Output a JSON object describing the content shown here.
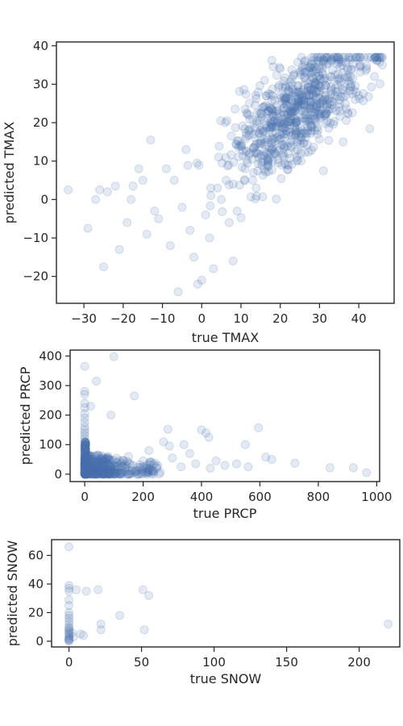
{
  "chart_data": [
    {
      "type": "scatter",
      "title": "",
      "xlabel": "true TMAX",
      "ylabel": "predicted TMAX",
      "xlim": [
        -37,
        49
      ],
      "ylim": [
        -27,
        41
      ],
      "xticks": [
        -30,
        -20,
        -10,
        0,
        10,
        20,
        30,
        40
      ],
      "yticks": [
        -20,
        -10,
        0,
        10,
        20,
        30,
        40
      ],
      "tick_labels_x": [
        "−30",
        "−20",
        "−10",
        "0",
        "10",
        "20",
        "30",
        "40"
      ],
      "tick_labels_y": [
        "−20",
        "−10",
        "0",
        "10",
        "20",
        "30",
        "40"
      ],
      "marker_color": "#4c72b0",
      "marker_alpha": 0.15,
      "grid": false,
      "points": [
        [
          -34,
          2.5
        ],
        [
          -29,
          -7.5
        ],
        [
          -27,
          0
        ],
        [
          -25,
          -17.5
        ],
        [
          -24,
          2
        ],
        [
          -22,
          3.5
        ],
        [
          -21,
          -13
        ],
        [
          -19,
          -6
        ],
        [
          -18,
          0
        ],
        [
          -16,
          8
        ],
        [
          -15,
          5
        ],
        [
          -14,
          -9
        ],
        [
          -13,
          15.5
        ],
        [
          -12,
          -3
        ],
        [
          -11,
          -5
        ],
        [
          -9,
          8
        ],
        [
          -8,
          -12
        ],
        [
          -7,
          5
        ],
        [
          -6,
          -24
        ],
        [
          -5,
          -2
        ],
        [
          -4,
          13
        ],
        [
          -3,
          -8
        ],
        [
          -2,
          -15
        ],
        [
          -1,
          -22
        ],
        [
          0,
          -21
        ],
        [
          1,
          -4
        ],
        [
          2,
          -10
        ],
        [
          3,
          -18
        ],
        [
          4,
          3
        ],
        [
          5,
          0
        ],
        [
          6,
          20
        ],
        [
          7,
          -6
        ],
        [
          8,
          4
        ],
        [
          9,
          -3
        ],
        [
          10,
          14
        ],
        [
          11,
          8
        ],
        [
          12,
          22
        ],
        [
          13,
          5
        ],
        [
          14,
          12
        ],
        [
          15,
          18
        ],
        [
          16,
          31
        ],
        [
          17,
          10
        ],
        [
          18,
          27
        ],
        [
          19,
          16
        ],
        [
          20,
          34
        ],
        [
          21,
          24
        ],
        [
          22,
          12
        ],
        [
          23,
          30
        ],
        [
          24,
          20
        ],
        [
          25,
          33
        ],
        [
          26,
          26
        ],
        [
          27,
          18
        ],
        [
          28,
          35
        ],
        [
          29,
          28
        ],
        [
          30,
          22
        ],
        [
          31,
          31
        ],
        [
          32,
          26
        ],
        [
          33,
          36
        ],
        [
          34,
          29
        ],
        [
          35,
          24
        ],
        [
          36,
          33
        ],
        [
          38,
          30
        ],
        [
          40,
          27
        ],
        [
          42,
          34
        ],
        [
          44,
          32
        ],
        [
          46,
          35
        ],
        [
          31,
          7.5
        ],
        [
          36,
          15
        ],
        [
          -26,
          2.5
        ],
        [
          -17.5,
          3.5
        ],
        [
          8,
          -16
        ]
      ],
      "cluster": {
        "x_mean": 25,
        "x_sd": 9,
        "y_slope": 0.72,
        "y_offset": 6,
        "y_sd": 6.5,
        "n": 700,
        "seed": 11
      }
    },
    {
      "type": "scatter",
      "title": "",
      "xlabel": "true PRCP",
      "ylabel": "predicted PRCP",
      "xlim": [
        -50,
        1010
      ],
      "ylim": [
        -25,
        420
      ],
      "xticks": [
        0,
        200,
        400,
        600,
        800,
        1000
      ],
      "yticks": [
        0,
        100,
        200,
        300,
        400
      ],
      "tick_labels_x": [
        "0",
        "200",
        "400",
        "600",
        "800",
        "1000"
      ],
      "tick_labels_y": [
        "0",
        "100",
        "200",
        "300",
        "400"
      ],
      "marker_color": "#4c72b0",
      "marker_alpha": 0.15,
      "grid": false,
      "points": [
        [
          0,
          365
        ],
        [
          0,
          280
        ],
        [
          0,
          270
        ],
        [
          0,
          240
        ],
        [
          0,
          225
        ],
        [
          0,
          205
        ],
        [
          0,
          190
        ],
        [
          0,
          175
        ],
        [
          0,
          160
        ],
        [
          0,
          150
        ],
        [
          0,
          140
        ],
        [
          0,
          130
        ],
        [
          0,
          120
        ],
        [
          0,
          110
        ],
        [
          0,
          100
        ],
        [
          0,
          95
        ],
        [
          0,
          90
        ],
        [
          0,
          85
        ],
        [
          100,
          398
        ],
        [
          40,
          315
        ],
        [
          20,
          230
        ],
        [
          90,
          200
        ],
        [
          170,
          265
        ],
        [
          285,
          152
        ],
        [
          400,
          150
        ],
        [
          415,
          140
        ],
        [
          425,
          125
        ],
        [
          340,
          100
        ],
        [
          220,
          80
        ],
        [
          270,
          110
        ],
        [
          290,
          95
        ],
        [
          300,
          55
        ],
        [
          360,
          70
        ],
        [
          380,
          35
        ],
        [
          450,
          45
        ],
        [
          480,
          30
        ],
        [
          520,
          35
        ],
        [
          550,
          100
        ],
        [
          595,
          157
        ],
        [
          620,
          58
        ],
        [
          640,
          50
        ],
        [
          720,
          37
        ],
        [
          840,
          22
        ],
        [
          920,
          22
        ],
        [
          965,
          5
        ],
        [
          560,
          25
        ],
        [
          430,
          20
        ],
        [
          330,
          25
        ],
        [
          250,
          30
        ],
        [
          200,
          45
        ],
        [
          150,
          60
        ],
        [
          130,
          25
        ],
        [
          110,
          40
        ],
        [
          80,
          55
        ],
        [
          60,
          30
        ]
      ],
      "cluster": {
        "x_scale": 60,
        "y_scale": 20,
        "n": 500,
        "seed": 23
      }
    },
    {
      "type": "scatter",
      "title": "",
      "xlabel": "true SNOW",
      "ylabel": "predicted SNOW",
      "xlim": [
        -12,
        228
      ],
      "ylim": [
        -4,
        71
      ],
      "xticks": [
        0,
        50,
        100,
        150,
        200
      ],
      "yticks": [
        0,
        20,
        40,
        60
      ],
      "tick_labels_x": [
        "0",
        "50",
        "100",
        "150",
        "200"
      ],
      "tick_labels_y": [
        "0",
        "20",
        "40",
        "60"
      ],
      "marker_color": "#4c72b0",
      "marker_alpha": 0.15,
      "grid": false,
      "points": [
        [
          0,
          66
        ],
        [
          0,
          39
        ],
        [
          0,
          37
        ],
        [
          0,
          35
        ],
        [
          0,
          29
        ],
        [
          0,
          25
        ],
        [
          0,
          20
        ],
        [
          0,
          18
        ],
        [
          0,
          16
        ],
        [
          0,
          14
        ],
        [
          0,
          12
        ],
        [
          0,
          10
        ],
        [
          0,
          8
        ],
        [
          0,
          6
        ],
        [
          0,
          4
        ],
        [
          0,
          2
        ],
        [
          0,
          1
        ],
        [
          0,
          0
        ],
        [
          0,
          0.5
        ],
        [
          0,
          1.5
        ],
        [
          0,
          3
        ],
        [
          0,
          5
        ],
        [
          0,
          7
        ],
        [
          0,
          9
        ],
        [
          5,
          36
        ],
        [
          8,
          5
        ],
        [
          10,
          4
        ],
        [
          12,
          35
        ],
        [
          20,
          36
        ],
        [
          22,
          12
        ],
        [
          22,
          8
        ],
        [
          35,
          18
        ],
        [
          51,
          36
        ],
        [
          52,
          8
        ],
        [
          55,
          32
        ],
        [
          220,
          12
        ],
        [
          2,
          6
        ],
        [
          3,
          3
        ]
      ],
      "cluster": {
        "n": 0,
        "seed": 5
      }
    }
  ]
}
